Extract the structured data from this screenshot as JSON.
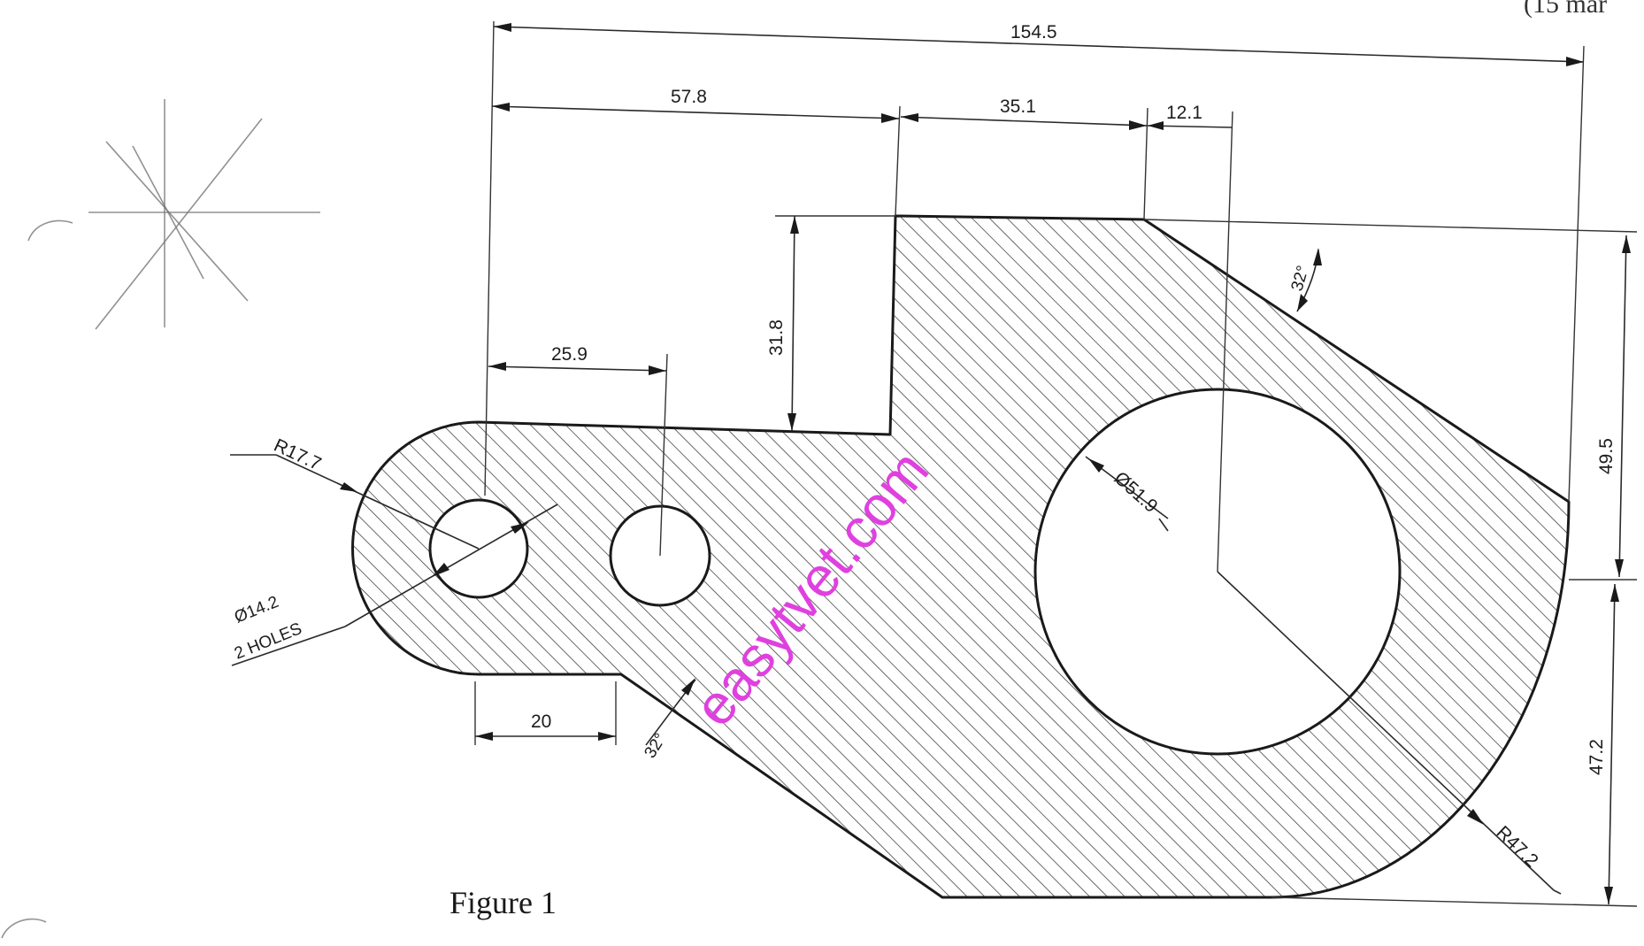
{
  "header": {
    "marks_fragment": "(15 mar"
  },
  "dimensions": {
    "overall_length": "154.5",
    "left_section": "57.8",
    "middle_section": "35.1",
    "top_offset": "12.1",
    "hole_spacing": "25.9",
    "step_height": "31.8",
    "right_upper_height": "49.5",
    "right_lower_height": "47.2",
    "bottom_flat": "20",
    "top_chamfer_angle": "32°",
    "bottom_chamfer_angle": "32°",
    "end_radius": "R17.7",
    "small_holes_diameter": "Ø14.2",
    "small_holes_note": "2 HOLES",
    "large_hole_diameter": "Ø51.9",
    "large_arc_radius": "R47.2"
  },
  "caption": "Figure 1",
  "watermark": {
    "text": "easytvet.com",
    "color": "#e040e0"
  },
  "colors": {
    "line": "#1a1a1a",
    "hatch": "#3a3a3a",
    "paper": "#ffffff"
  }
}
